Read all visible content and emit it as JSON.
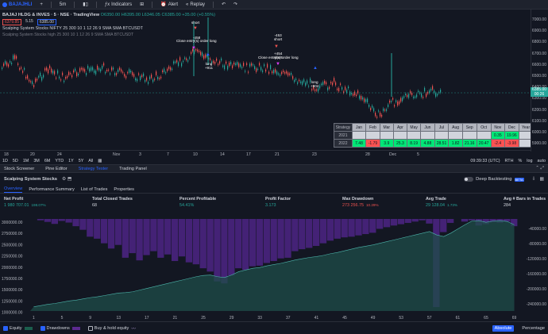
{
  "topbar": {
    "symbol": "BAJAJHLI",
    "interval": "5m",
    "indicators": "Indicators",
    "alert": "Alert",
    "replay": "Replay"
  },
  "legend": {
    "title": "BAJAJ HLDG & INVES · 5 · NSE · TradingView",
    "ohlc": "O6350.00 H6395.00 L6346.05 C6385.00 +35.00 (+0.55%)",
    "sell_price": "6379.85",
    "spread": "5.15",
    "buy_price": "6385.00",
    "indicator": "Scalping System Stocks  NIFTY 25 300 10 1 12 26 9 SMA SMA BTCUSDT",
    "indicator2": "Scalping System Stocks high 25 300 10 1 12 26 9 SMA SMA BTCUSDT"
  },
  "y_axis": [
    "7000.00",
    "6900.00",
    "6800.00",
    "6700.00",
    "6600.00",
    "6500.00",
    "6400.00",
    "6300.00",
    "6200.00",
    "6100.00",
    "6000.00",
    "5900.00"
  ],
  "price_tag": {
    "price": "6385.00",
    "countdown": "00:26"
  },
  "x_axis": [
    "18",
    "20",
    "24",
    "Nov",
    "3",
    "7",
    "10",
    "14",
    "17",
    "21",
    "23",
    "28",
    "Dec",
    "5"
  ],
  "annotations": {
    "short": "short",
    "short_458": "-458",
    "close_long_1": "Close entry(s) order long",
    "long_911": "long\n+911",
    "short_453": "-453\nshort",
    "short_454": "+454\nshort",
    "close_long_2": "Close entry(s) order long",
    "long_904": "long\n+904"
  },
  "chart_data": {
    "type": "line",
    "title": "",
    "ylim": [
      5900,
      7050
    ],
    "table": {
      "headers": [
        "Strategy",
        "Jan",
        "Feb",
        "Mar",
        "Apr",
        "May",
        "Jun",
        "Jul",
        "Aug",
        "Sep",
        "Oct",
        "Nov",
        "Dec",
        "Year"
      ],
      "rows": [
        {
          "year": "2021",
          "values": [
            "",
            "",
            "",
            "",
            "",
            "",
            "",
            "",
            "",
            "",
            "0.35",
            "19.96",
            "",
            "20.36"
          ]
        },
        {
          "year": "2022",
          "values": [
            "7.48",
            "-1.79",
            "3.9",
            "25.3",
            "8.19",
            "4.88",
            "28.51",
            "1.82",
            "21.16",
            "20.47",
            "-2.4",
            "-3.98",
            "",
            "137.92"
          ]
        }
      ]
    }
  },
  "range_bar": {
    "ranges": [
      "1D",
      "5D",
      "1M",
      "3M",
      "6M",
      "YTD",
      "1Y",
      "5Y",
      "All"
    ],
    "time": "09:39:33 (UTC)",
    "session": "RTH",
    "pct": "%",
    "log": "log",
    "auto": "auto"
  },
  "panel_tabs": [
    "Stock Screener",
    "Pine Editor",
    "Strategy Tester",
    "Trading Panel"
  ],
  "strategy": {
    "title": "Scalping System Stocks",
    "deep_backtesting": "Deep Backtesting",
    "beta": "BETA"
  },
  "sub_tabs": [
    "Overview",
    "Performance Summary",
    "List of Trades",
    "Properties"
  ],
  "metrics": [
    {
      "label": "Net Profit",
      "value": "1 980 707.01",
      "pct": "198.07%",
      "color": "green"
    },
    {
      "label": "Total Closed Trades",
      "value": "68",
      "pct": "",
      "color": "neutral"
    },
    {
      "label": "Percent Profitable",
      "value": "54.41%",
      "pct": "",
      "color": "green"
    },
    {
      "label": "Profit Factor",
      "value": "3.173",
      "pct": "",
      "color": "green"
    },
    {
      "label": "Max Drawdown",
      "value": "273 256.75",
      "pct": "10.29%",
      "color": "red"
    },
    {
      "label": "Avg Trade",
      "value": "29 128.04",
      "pct": "1.73%",
      "color": "green"
    },
    {
      "label": "Avg # Bars in Trades",
      "value": "284",
      "pct": "",
      "color": "neutral"
    }
  ],
  "perf_chart": {
    "left_axis": [
      "3000000.00",
      "2750000.00",
      "2500000.00",
      "2250000.00",
      "2000000.00",
      "1750000.00",
      "1500000.00",
      "1250000.00",
      "1000000.00"
    ],
    "right_axis": [
      "-40000.00",
      "-80000.00",
      "-120000.00",
      "-160000.00",
      "-200000.00",
      "-240000.00"
    ],
    "x_ticks": [
      "1",
      "5",
      "9",
      "13",
      "17",
      "21",
      "25",
      "29",
      "33",
      "37",
      "41",
      "45",
      "49",
      "53",
      "57",
      "61",
      "65",
      "69"
    ],
    "equity": [
      1000000,
      1030000,
      1060000,
      1080000,
      1110000,
      1140000,
      1160000,
      1190000,
      1220000,
      1240000,
      1270000,
      1300000,
      1330000,
      1340000,
      1360000,
      1400000,
      1440000,
      1480000,
      1520000,
      1560000,
      1600000,
      1640000,
      1680000,
      1720000,
      1750000,
      1760000,
      1720000,
      1700000,
      1760000,
      1840000,
      1880000,
      1920000,
      1940000,
      1980000,
      2010000,
      2040000,
      2080000,
      2120000,
      2150000,
      2180000,
      2200000,
      2230000,
      2270000,
      2300000,
      2340000,
      2380000,
      2420000,
      2450000,
      2480000,
      2520000,
      2560000,
      2600000,
      2640000,
      2680000,
      2720000,
      2760000,
      2800000,
      2720000,
      2680000,
      2760000,
      2860000,
      2960000,
      3050000,
      3060000,
      3020000,
      3050000,
      3060000,
      3040000,
      2960000
    ],
    "drawdown": [
      0,
      -4000,
      -9000,
      -15000,
      -6000,
      -11000,
      -22000,
      -33000,
      -54000,
      -60000,
      -74000,
      -90000,
      -79000,
      -118000,
      -104000,
      -126000,
      -110000,
      -98000,
      -118000,
      -108000,
      -128000,
      -114000,
      -132000,
      -138000,
      -150000,
      -160000,
      -190000,
      -196000,
      -172000,
      -150000,
      -155000,
      -144000,
      -142000,
      -134000,
      -128000,
      -120000,
      -118000,
      -98000,
      -92000,
      -88000,
      -82000,
      -74000,
      -66000,
      -60000,
      -56000,
      -54000,
      -50000,
      -46000,
      -42000,
      -30000,
      -25000,
      -20000,
      -16000,
      -12000,
      -8000,
      -4000,
      -14000,
      -268000,
      -40000,
      -12000,
      0,
      -8000,
      -4000,
      -20000,
      -16000,
      -10000,
      -12000,
      -8000,
      -22000
    ]
  },
  "bottom": {
    "equity": "Equity",
    "drawdown": "Drawdowns",
    "buyhold": "Buy & hold equity",
    "absolute": "Absolute",
    "percentage": "Percentage"
  },
  "colors": {
    "up": "#26a69a",
    "down": "#ef5350",
    "accent": "#2962ff",
    "equity": "#1b3a3d",
    "drawdown": "#3f1f6e"
  }
}
